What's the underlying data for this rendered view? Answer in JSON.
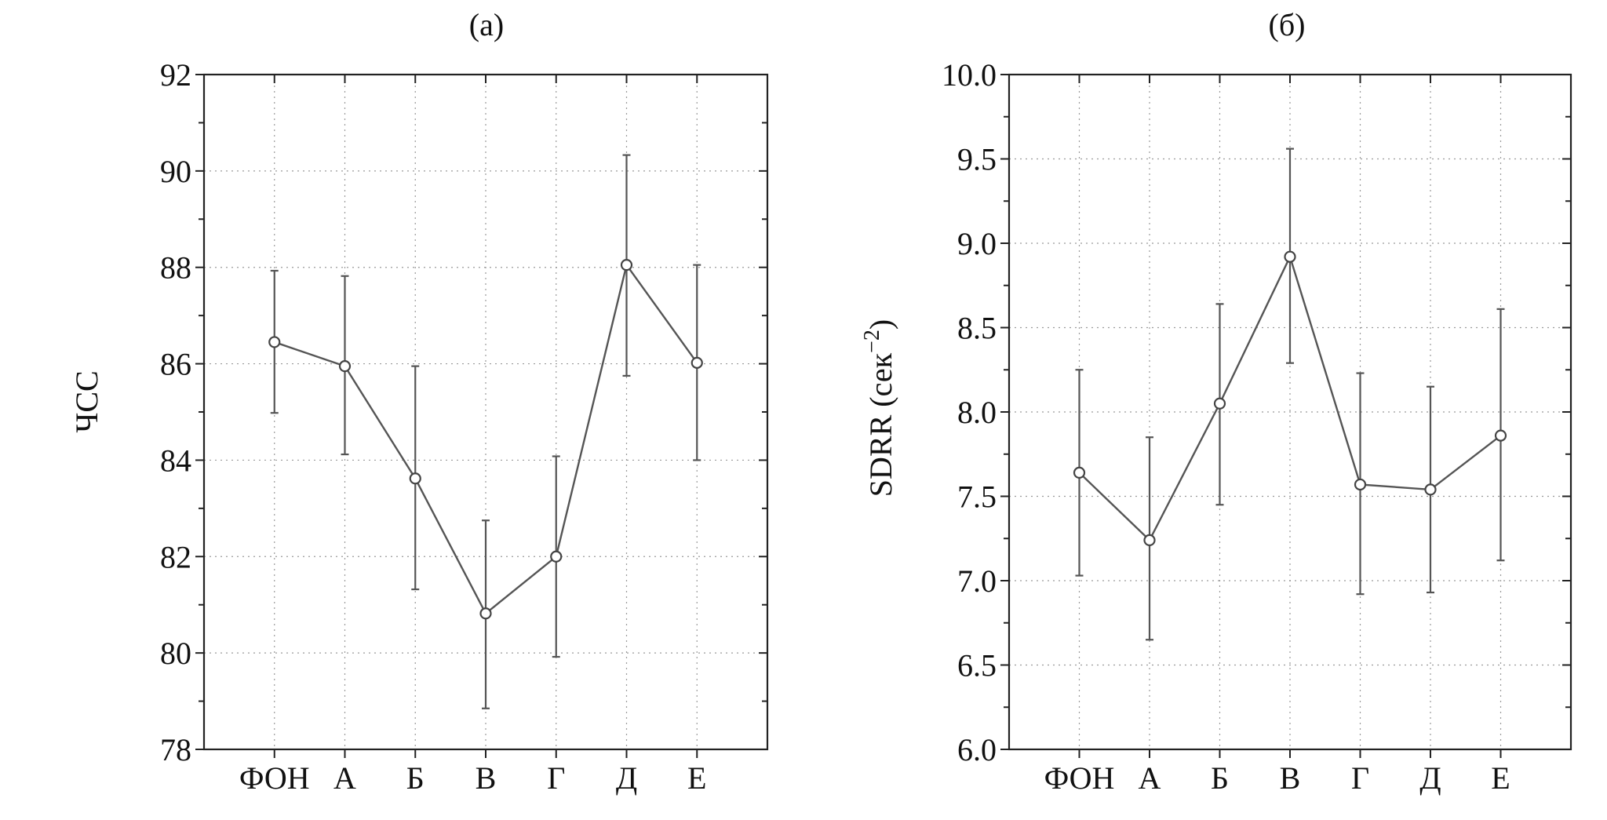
{
  "chart_data": [
    {
      "type": "line",
      "panel_label": "(а)",
      "title": "",
      "xlabel": "",
      "ylabel": "ЧСС",
      "ylabel_sup": "",
      "categories": [
        "ФОН",
        "А",
        "Б",
        "В",
        "Г",
        "Д",
        "Е"
      ],
      "yticks": [
        "78",
        "80",
        "82",
        "84",
        "86",
        "88",
        "90",
        "92"
      ],
      "ylim": [
        78,
        92
      ],
      "ytick_step": 2,
      "yminor_step": 1,
      "grid": true,
      "series": [
        {
          "values": [
            86.45,
            85.95,
            83.62,
            80.82,
            82.0,
            88.05,
            86.02
          ],
          "err_low": [
            84.98,
            84.12,
            81.32,
            78.85,
            79.92,
            85.75,
            84.0
          ],
          "err_high": [
            87.93,
            87.82,
            85.95,
            82.75,
            84.08,
            90.33,
            88.05
          ]
        }
      ]
    },
    {
      "type": "line",
      "panel_label": "(б)",
      "title": "",
      "xlabel": "",
      "ylabel": "SDRR (сек",
      "ylabel_sup": "−2",
      "ylabel_close": ")",
      "categories": [
        "ФОН",
        "А",
        "Б",
        "В",
        "Г",
        "Д",
        "Е"
      ],
      "yticks": [
        "6.0",
        "6.5",
        "7.0",
        "7.5",
        "8.0",
        "8.5",
        "9.0",
        "9.5",
        "10.0"
      ],
      "ylim": [
        6.0,
        10.0
      ],
      "ytick_step": 0.5,
      "yminor_step": 0.25,
      "grid": true,
      "series": [
        {
          "values": [
            7.64,
            7.24,
            8.05,
            8.92,
            7.57,
            7.54,
            7.86
          ],
          "err_low": [
            7.03,
            6.65,
            7.45,
            8.29,
            6.92,
            6.93,
            7.12
          ],
          "err_high": [
            8.25,
            7.85,
            8.64,
            9.56,
            8.23,
            8.15,
            8.61
          ]
        }
      ]
    }
  ]
}
